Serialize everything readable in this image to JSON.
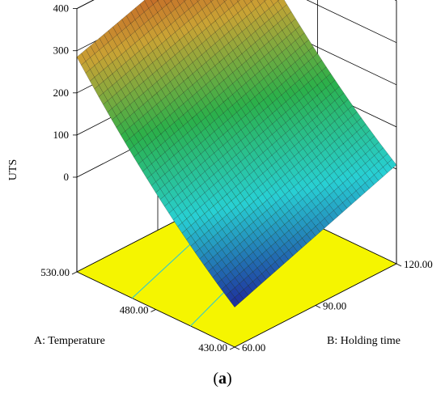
{
  "chart_data": {
    "type": "surface3d",
    "zlabel": "UTS",
    "xlabel": "A: Temperature",
    "ylabel": "B: Holding time",
    "z_ticks": [
      "0",
      "100",
      "200",
      "300",
      "400"
    ],
    "z_range": [
      0,
      400
    ],
    "x_ticks": [
      "430.00",
      "480.00",
      "530.00"
    ],
    "x_range": [
      430,
      530
    ],
    "y_ticks": [
      "60.00",
      "90.00",
      "120.00"
    ],
    "y_range": [
      60,
      120
    ],
    "surface_corners": [
      {
        "temperature": 430,
        "holding_time": 60,
        "uts": -130
      },
      {
        "temperature": 530,
        "holding_time": 60,
        "uts": 285
      },
      {
        "temperature": 430,
        "holding_time": 120,
        "uts": 10
      },
      {
        "temperature": 530,
        "holding_time": 120,
        "uts": 410
      }
    ],
    "floor_contours": [
      {
        "temperature_at_60": 495,
        "temperature_at_120": 525
      },
      {
        "temperature_at_60": 458,
        "temperature_at_120": 492
      }
    ],
    "colormap": [
      "#1e2a9a",
      "#28d0d4",
      "#2bb04a",
      "#caa334",
      "#c0301c"
    ],
    "floor_color": "#f5f500",
    "contour_color": "#35c9c9",
    "grid": true
  },
  "caption": {
    "open": "(",
    "letter": "a",
    "close": ")"
  }
}
